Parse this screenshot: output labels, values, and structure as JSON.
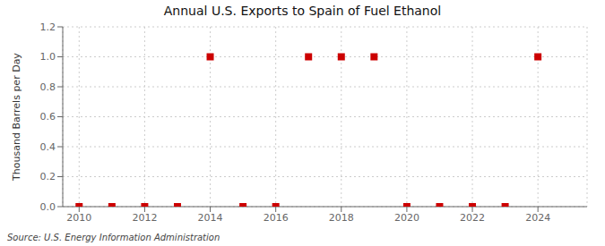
{
  "chart_data": {
    "type": "scatter",
    "title": "Annual U.S. Exports to Spain of Fuel Ethanol",
    "ylabel": "Thousand Barrels per Day",
    "source": "Source: U.S. Energy Information Administration",
    "x": [
      2010,
      2011,
      2012,
      2013,
      2014,
      2015,
      2016,
      2017,
      2018,
      2019,
      2020,
      2021,
      2022,
      2023,
      2024
    ],
    "values": [
      0.0,
      0.0,
      0.0,
      0.0,
      1.0,
      0.0,
      0.0,
      1.0,
      1.0,
      1.0,
      0.0,
      0.0,
      0.0,
      0.0,
      1.0
    ],
    "color": "#cc0000",
    "marker": "square",
    "xlim": [
      2009.5,
      2025.5
    ],
    "xticks": [
      2010,
      2012,
      2014,
      2016,
      2018,
      2020,
      2022,
      2024
    ],
    "ylim": [
      0.0,
      1.2
    ],
    "yticks": [
      {
        "value": 0,
        "label": "0.0"
      },
      0.2,
      0.4,
      0.6,
      0.8,
      {
        "value": 1,
        "label": "1.0"
      },
      1.2
    ],
    "grid": true
  }
}
